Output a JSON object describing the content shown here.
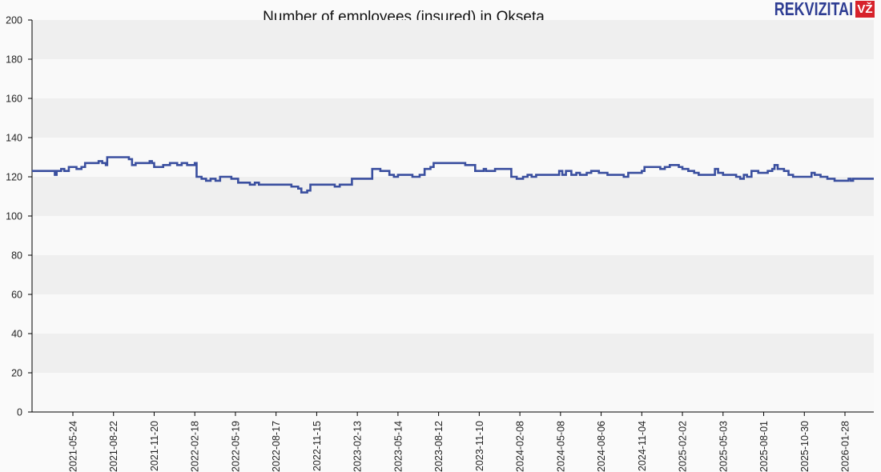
{
  "title": "Number of employees (insured) in Okseta",
  "logo": {
    "text": "REKVIZITAI",
    "badge": "VŽ",
    "text_color": "#2e3d93",
    "badge_color": "#d7222b"
  },
  "colors": {
    "line": "#3a4f9f",
    "band_dark": "#efefef",
    "band_light": "#f9f9f9",
    "background": "#fafafa",
    "axis": "#000000"
  },
  "chart_data": {
    "type": "line",
    "title": "Number of employees (insured) in Okseta",
    "xlabel": "",
    "ylabel": "",
    "ylim": [
      0,
      200
    ],
    "yticks": [
      0,
      20,
      40,
      60,
      80,
      100,
      120,
      140,
      160,
      180,
      200
    ],
    "xtick_labels": [
      "2021-05-24",
      "2021-08-22",
      "2021-11-20",
      "2022-02-18",
      "2022-05-19",
      "2022-08-17",
      "2022-11-15",
      "2023-02-13",
      "2023-05-14",
      "2023-08-12",
      "2023-11-10",
      "2024-02-08",
      "2024-05-08",
      "2024-08-06",
      "2024-11-04",
      "2025-02-02",
      "2025-05-03",
      "2025-08-01",
      "2025-10-30",
      "2026-01-28"
    ],
    "grid": "alternating horizontal bands",
    "legend": "none",
    "series": [
      {
        "name": "Employees",
        "step": true,
        "points": [
          [
            "2021-02-24",
            123
          ],
          [
            "2021-04-10",
            123
          ],
          [
            "2021-04-14",
            121
          ],
          [
            "2021-04-18",
            123
          ],
          [
            "2021-04-28",
            124
          ],
          [
            "2021-05-05",
            123
          ],
          [
            "2021-05-15",
            125
          ],
          [
            "2021-06-01",
            124
          ],
          [
            "2021-06-12",
            125
          ],
          [
            "2021-06-20",
            127
          ],
          [
            "2021-07-15",
            127
          ],
          [
            "2021-07-20",
            128
          ],
          [
            "2021-07-28",
            127
          ],
          [
            "2021-08-05",
            126
          ],
          [
            "2021-08-08",
            130
          ],
          [
            "2021-09-20",
            130
          ],
          [
            "2021-09-25",
            129
          ],
          [
            "2021-10-02",
            126
          ],
          [
            "2021-10-10",
            127
          ],
          [
            "2021-11-10",
            128
          ],
          [
            "2021-11-15",
            127
          ],
          [
            "2021-11-20",
            125
          ],
          [
            "2021-12-10",
            126
          ],
          [
            "2021-12-25",
            127
          ],
          [
            "2022-01-10",
            126
          ],
          [
            "2022-01-20",
            127
          ],
          [
            "2022-02-01",
            126
          ],
          [
            "2022-02-18",
            127
          ],
          [
            "2022-02-22",
            120
          ],
          [
            "2022-03-05",
            119
          ],
          [
            "2022-03-15",
            118
          ],
          [
            "2022-03-25",
            119
          ],
          [
            "2022-04-05",
            118
          ],
          [
            "2022-04-15",
            120
          ],
          [
            "2022-05-10",
            119
          ],
          [
            "2022-05-25",
            117
          ],
          [
            "2022-06-20",
            116
          ],
          [
            "2022-07-01",
            117
          ],
          [
            "2022-07-10",
            116
          ],
          [
            "2022-08-17",
            116
          ],
          [
            "2022-09-20",
            115
          ],
          [
            "2022-10-05",
            114
          ],
          [
            "2022-10-12",
            112
          ],
          [
            "2022-10-25",
            113
          ],
          [
            "2022-11-01",
            116
          ],
          [
            "2022-12-15",
            116
          ],
          [
            "2022-12-25",
            115
          ],
          [
            "2023-01-05",
            116
          ],
          [
            "2023-01-30",
            116
          ],
          [
            "2023-02-01",
            119
          ],
          [
            "2023-03-15",
            119
          ],
          [
            "2023-03-18",
            124
          ],
          [
            "2023-04-05",
            123
          ],
          [
            "2023-04-25",
            121
          ],
          [
            "2023-05-05",
            120
          ],
          [
            "2023-05-14",
            121
          ],
          [
            "2023-06-15",
            120
          ],
          [
            "2023-07-01",
            121
          ],
          [
            "2023-07-12",
            124
          ],
          [
            "2023-07-25",
            125
          ],
          [
            "2023-08-01",
            127
          ],
          [
            "2023-10-10",
            126
          ],
          [
            "2023-10-25",
            126
          ],
          [
            "2023-11-01",
            123
          ],
          [
            "2023-11-20",
            124
          ],
          [
            "2023-11-25",
            123
          ],
          [
            "2023-12-05",
            123
          ],
          [
            "2023-12-15",
            124
          ],
          [
            "2024-01-10",
            124
          ],
          [
            "2024-01-20",
            120
          ],
          [
            "2024-02-01",
            119
          ],
          [
            "2024-02-15",
            120
          ],
          [
            "2024-02-25",
            121
          ],
          [
            "2024-03-05",
            120
          ],
          [
            "2024-03-15",
            121
          ],
          [
            "2024-05-01",
            121
          ],
          [
            "2024-05-05",
            123
          ],
          [
            "2024-05-12",
            121
          ],
          [
            "2024-05-20",
            123
          ],
          [
            "2024-06-01",
            121
          ],
          [
            "2024-06-12",
            122
          ],
          [
            "2024-06-20",
            121
          ],
          [
            "2024-07-05",
            122
          ],
          [
            "2024-07-15",
            123
          ],
          [
            "2024-08-01",
            122
          ],
          [
            "2024-08-20",
            121
          ],
          [
            "2024-09-25",
            120
          ],
          [
            "2024-10-05",
            122
          ],
          [
            "2024-10-25",
            122
          ],
          [
            "2024-11-04",
            123
          ],
          [
            "2024-11-10",
            125
          ],
          [
            "2024-12-15",
            124
          ],
          [
            "2024-12-25",
            125
          ],
          [
            "2025-01-05",
            126
          ],
          [
            "2025-01-25",
            125
          ],
          [
            "2025-02-02",
            124
          ],
          [
            "2025-02-15",
            123
          ],
          [
            "2025-02-28",
            122
          ],
          [
            "2025-03-10",
            121
          ],
          [
            "2025-04-10",
            121
          ],
          [
            "2025-04-15",
            124
          ],
          [
            "2025-04-22",
            122
          ],
          [
            "2025-05-03",
            121
          ],
          [
            "2025-06-01",
            120
          ],
          [
            "2025-06-10",
            119
          ],
          [
            "2025-06-18",
            121
          ],
          [
            "2025-06-25",
            120
          ],
          [
            "2025-07-05",
            123
          ],
          [
            "2025-07-20",
            122
          ],
          [
            "2025-08-01",
            122
          ],
          [
            "2025-08-10",
            123
          ],
          [
            "2025-08-20",
            124
          ],
          [
            "2025-08-25",
            126
          ],
          [
            "2025-09-01",
            124
          ],
          [
            "2025-09-15",
            123
          ],
          [
            "2025-09-25",
            121
          ],
          [
            "2025-10-05",
            120
          ],
          [
            "2025-11-05",
            120
          ],
          [
            "2025-11-15",
            122
          ],
          [
            "2025-11-22",
            121
          ],
          [
            "2025-12-05",
            120
          ],
          [
            "2025-12-20",
            119
          ],
          [
            "2026-01-05",
            118
          ],
          [
            "2026-02-01",
            118
          ],
          [
            "2026-02-05",
            119
          ],
          [
            "2026-02-10",
            118
          ],
          [
            "2026-02-15",
            119
          ]
        ]
      }
    ]
  }
}
